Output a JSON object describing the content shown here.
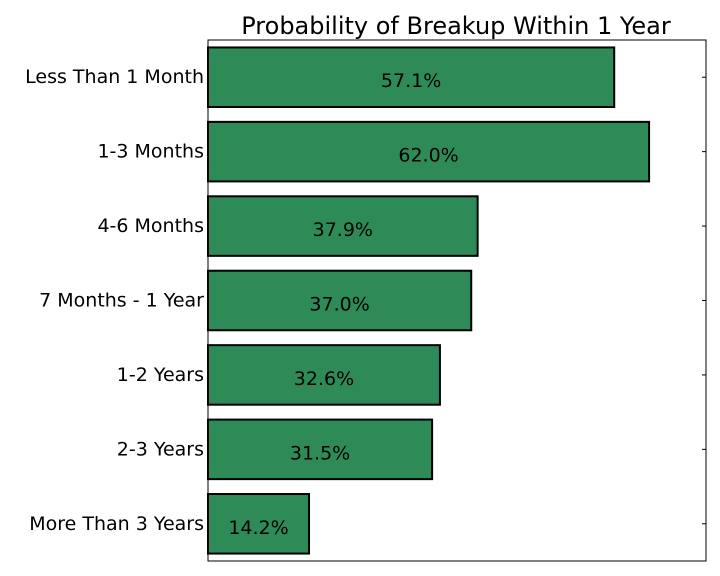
{
  "chart_data": {
    "type": "bar",
    "orientation": "horizontal",
    "title": "Probability of Breakup Within 1 Year",
    "xlabel": "",
    "ylabel": "",
    "categories": [
      "Less Than 1 Month",
      "1-3 Months",
      "4-6 Months",
      "7 Months - 1 Year",
      "1-2 Years",
      "2-3 Years",
      "More Than 3 Years"
    ],
    "values": [
      57.1,
      62.0,
      37.9,
      37.0,
      32.6,
      31.5,
      14.2
    ],
    "value_labels": [
      "57.1%",
      "62.0%",
      "37.9%",
      "37.0%",
      "32.6%",
      "31.5%",
      "14.2%"
    ],
    "xlim": [
      0,
      70
    ],
    "bar_color": "#2e8b57",
    "bar_edge_color": "#000000",
    "grid": false,
    "legend": "none"
  }
}
